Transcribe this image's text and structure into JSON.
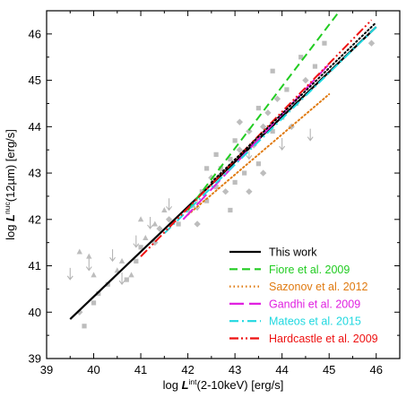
{
  "chart_data": {
    "type": "scatter",
    "xlabel": "log L^int(2-10keV) [erg/s]",
    "xlabel_parts": {
      "prefix": "log ",
      "symbol": "L",
      "sup": "int",
      "suffix": "(2-10keV) [erg/s]"
    },
    "ylabel": "log L^nuc(12µm) [erg/s]",
    "ylabel_parts": {
      "prefix": "log ",
      "symbol": "L",
      "sup": "nuc",
      "suffix": "(12µm) [erg/s]"
    },
    "xlim": [
      39,
      46.5
    ],
    "ylim": [
      39,
      46.5
    ],
    "x_ticks": [
      39,
      40,
      41,
      42,
      43,
      44,
      45,
      46
    ],
    "y_ticks": [
      39,
      40,
      41,
      42,
      43,
      44,
      45,
      46
    ],
    "grid": false,
    "legend_position": "bottom-right",
    "points": [
      [
        39.8,
        39.7
      ],
      [
        40.0,
        40.2
      ],
      [
        40.1,
        40.4
      ],
      [
        39.7,
        40.0
      ],
      [
        40.3,
        40.6
      ],
      [
        40.7,
        40.7
      ],
      [
        40.9,
        41.1
      ],
      [
        41.0,
        41.4
      ],
      [
        41.3,
        41.5
      ],
      [
        41.4,
        41.8
      ],
      [
        41.6,
        42.0
      ],
      [
        41.8,
        41.9
      ],
      [
        42.0,
        42.2
      ],
      [
        42.1,
        42.3
      ],
      [
        42.3,
        42.6
      ],
      [
        42.4,
        42.4
      ],
      [
        42.5,
        42.9
      ],
      [
        42.6,
        42.7
      ],
      [
        42.7,
        43.1
      ],
      [
        42.8,
        42.6
      ],
      [
        42.9,
        43.3
      ],
      [
        43.0,
        42.8
      ],
      [
        43.1,
        43.5
      ],
      [
        43.2,
        43.0
      ],
      [
        43.3,
        43.9
      ],
      [
        43.4,
        43.6
      ],
      [
        43.5,
        43.2
      ],
      [
        43.6,
        44.0
      ],
      [
        43.7,
        44.3
      ],
      [
        43.8,
        43.9
      ],
      [
        43.9,
        44.6
      ],
      [
        44.0,
        44.2
      ],
      [
        44.1,
        44.8
      ],
      [
        44.3,
        44.5
      ],
      [
        44.5,
        45.0
      ],
      [
        44.7,
        45.3
      ],
      [
        44.9,
        45.8
      ],
      [
        45.9,
        45.8
      ],
      [
        42.2,
        41.9
      ],
      [
        42.6,
        43.4
      ],
      [
        43.0,
        43.7
      ],
      [
        43.3,
        42.6
      ],
      [
        43.6,
        43.0
      ],
      [
        44.2,
        44.0
      ],
      [
        42.9,
        42.2
      ],
      [
        43.8,
        45.2
      ],
      [
        44.4,
        45.5
      ],
      [
        42.4,
        43.1
      ],
      [
        43.1,
        44.1
      ],
      [
        43.5,
        44.4
      ]
    ],
    "triangles": [
      [
        39.7,
        41.3
      ],
      [
        39.9,
        41.2
      ],
      [
        40.0,
        40.8
      ],
      [
        40.5,
        40.9
      ],
      [
        40.6,
        41.1
      ],
      [
        41.1,
        41.6
      ],
      [
        41.3,
        41.9
      ],
      [
        41.5,
        42.2
      ],
      [
        41.0,
        42.0
      ],
      [
        40.8,
        40.8
      ]
    ],
    "upper_limits": [
      [
        39.5,
        40.8
      ],
      [
        39.9,
        41.0
      ],
      [
        40.4,
        41.2
      ],
      [
        40.9,
        41.5
      ],
      [
        41.2,
        41.9
      ],
      [
        41.6,
        42.3
      ],
      [
        42.2,
        42.3
      ],
      [
        42.7,
        43.0
      ],
      [
        43.3,
        43.4
      ],
      [
        44.0,
        43.6
      ],
      [
        44.6,
        43.8
      ],
      [
        40.6,
        40.7
      ]
    ],
    "series": [
      {
        "name": "This work",
        "color": "#000000",
        "dash": "solid",
        "x": [
          39.5,
          46.0
        ],
        "y": [
          39.85,
          46.15
        ]
      },
      {
        "name": "Fiore et al. 2009",
        "color": "#22cc22",
        "dash": "dashed",
        "x": [
          42.0,
          45.3
        ],
        "y": [
          42.2,
          46.6
        ]
      },
      {
        "name": "Sazonov et al. 2012",
        "color": "#e07a10",
        "dash": "dotted",
        "x": [
          42.0,
          45.0
        ],
        "y": [
          42.1,
          44.7
        ]
      },
      {
        "name": "Gandhi et al. 2009",
        "color": "#e020e0",
        "dash": "long-dash",
        "x": [
          41.9,
          45.0
        ],
        "y": [
          42.0,
          45.35
        ]
      },
      {
        "name": "Mateos et al. 2015",
        "color": "#20d8e0",
        "dash": "dash-dot",
        "x": [
          41.5,
          46.0
        ],
        "y": [
          41.7,
          46.15
        ]
      },
      {
        "name": "Hardcastle et al. 2009",
        "color": "#ee1111",
        "dash": "dash-dot-dot",
        "x": [
          41.0,
          45.9
        ],
        "y": [
          41.2,
          46.3
        ]
      },
      {
        "name": "",
        "color": "#000000",
        "dash": "dotted",
        "x": [
          42.5,
          46.0
        ],
        "y": [
          42.8,
          46.25
        ]
      }
    ],
    "legend": [
      {
        "label": "This work",
        "color": "#000000",
        "dash": "solid"
      },
      {
        "label": "Fiore et al. 2009",
        "color": "#22cc22",
        "dash": "dashed"
      },
      {
        "label": "Sazonov et al. 2012",
        "color": "#e07a10",
        "dash": "dotted"
      },
      {
        "label": "Gandhi et al. 2009",
        "color": "#e020e0",
        "dash": "long-dash"
      },
      {
        "label": "Mateos et al. 2015",
        "color": "#20d8e0",
        "dash": "dash-dot"
      },
      {
        "label": "Hardcastle et al. 2009",
        "color": "#ee1111",
        "dash": "dash-dot-dot"
      }
    ]
  }
}
